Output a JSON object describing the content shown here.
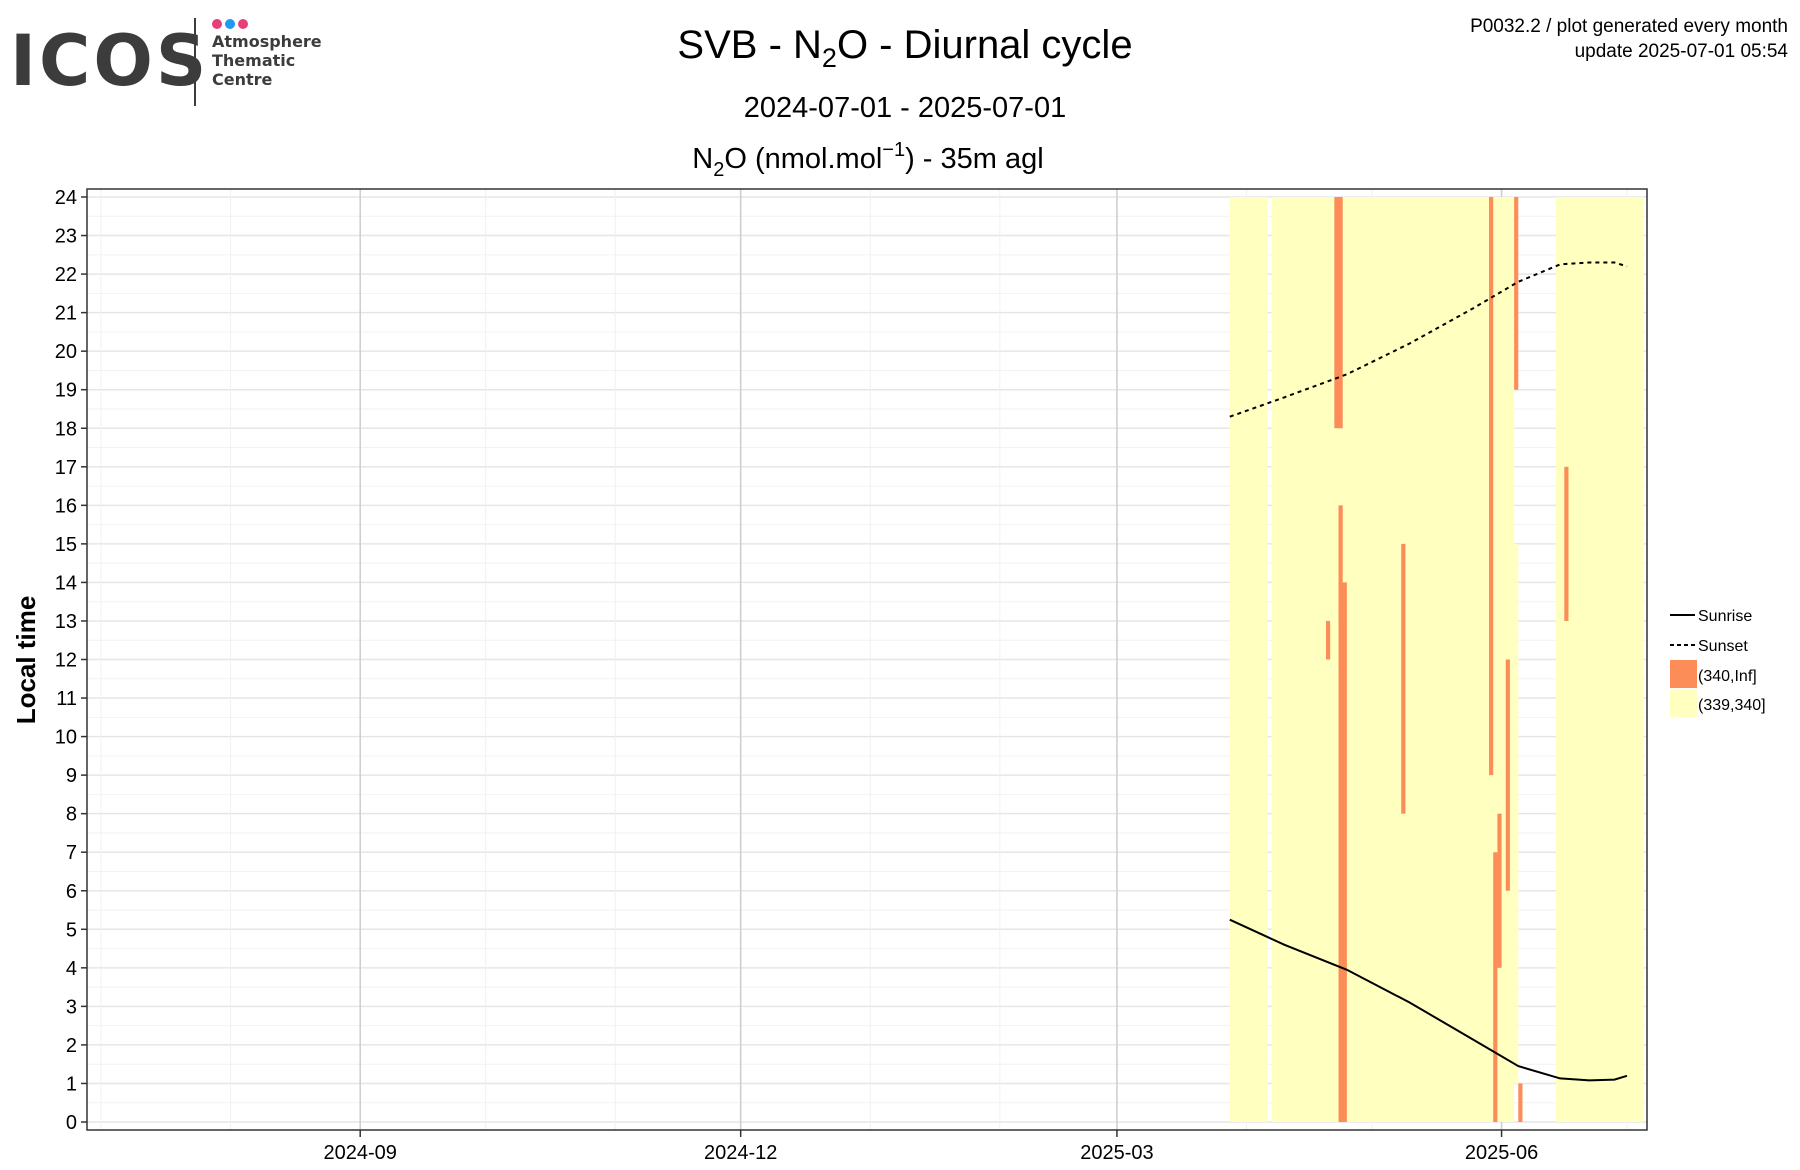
{
  "logo": {
    "word": "ICOS",
    "lines": [
      "Atmosphere",
      "Thematic",
      "Centre"
    ],
    "dot_colors": [
      "#e83e7a",
      "#1d9bf0",
      "#e83e7a"
    ]
  },
  "meta": {
    "line1": "P0032.2 / plot generated every month",
    "line2": "update  2025-07-01 05:54"
  },
  "title": {
    "prefix": "SVB - N",
    "sub": "2",
    "suffix": "O - Diurnal cycle"
  },
  "subtitle": "2024-07-01 - 2025-07-01",
  "subtitle2": {
    "prefix": "N",
    "sub": "2",
    "mid": "O (nmol.mol",
    "sup": "−1",
    "suffix": ") - 35m agl"
  },
  "chart_data": {
    "type": "heatmap",
    "ylabel": "Local time",
    "xlim": [
      "2024-07-01",
      "2025-07-01"
    ],
    "ylim": [
      0,
      24
    ],
    "y_ticks": [
      0,
      1,
      2,
      3,
      4,
      5,
      6,
      7,
      8,
      9,
      10,
      11,
      12,
      13,
      14,
      15,
      16,
      17,
      18,
      19,
      20,
      21,
      22,
      23,
      24
    ],
    "x_ticks": [
      "2024-09",
      "2024-12",
      "2025-03",
      "2025-06"
    ],
    "grid": true,
    "legend_position": "right",
    "legend": [
      {
        "label": "Sunrise",
        "kind": "line",
        "style": "solid"
      },
      {
        "label": "Sunset",
        "kind": "line",
        "style": "dashed"
      },
      {
        "label": "(340,Inf]",
        "kind": "fill",
        "color": "#fc8d59"
      },
      {
        "label": "(339,340]",
        "kind": "fill",
        "color": "#ffffbf"
      }
    ],
    "tiles": [
      {
        "class": "(339,340]",
        "x0": "2025-03-28",
        "x1": "2025-04-06",
        "y0": 0,
        "y1": 24
      },
      {
        "class": "(339,340]",
        "x0": "2025-04-07",
        "x1": "2025-05-22",
        "y0": 0,
        "y1": 24
      },
      {
        "class": "(339,340]",
        "x0": "2025-05-22",
        "x1": "2025-06-04",
        "y0": 0,
        "y1": 24
      },
      {
        "class": "(339,340]",
        "x0": "2025-06-04",
        "x1": "2025-06-05",
        "y0": 1,
        "y1": 15
      },
      {
        "class": "(339,340]",
        "x0": "2025-06-14",
        "x1": "2025-07-05",
        "y0": 0,
        "y1": 24
      },
      {
        "class": "(340,Inf]",
        "x0": "2025-04-22",
        "x1": "2025-04-24",
        "y0": 18,
        "y1": 24
      },
      {
        "class": "(340,Inf]",
        "x0": "2025-04-23",
        "x1": "2025-04-24",
        "y0": 13,
        "y1": 16
      },
      {
        "class": "(340,Inf]",
        "x0": "2025-04-23",
        "x1": "2025-04-25",
        "y0": 0,
        "y1": 14
      },
      {
        "class": "(340,Inf]",
        "x0": "2025-04-20",
        "x1": "2025-04-21",
        "y0": 12,
        "y1": 13
      },
      {
        "class": "(340,Inf]",
        "x0": "2025-05-08",
        "x1": "2025-05-09",
        "y0": 8,
        "y1": 15
      },
      {
        "class": "(340,Inf]",
        "x0": "2025-05-29",
        "x1": "2025-05-30",
        "y0": 9,
        "y1": 24
      },
      {
        "class": "(340,Inf]",
        "x0": "2025-05-30",
        "x1": "2025-05-31",
        "y0": 0,
        "y1": 7
      },
      {
        "class": "(340,Inf]",
        "x0": "2025-05-31",
        "x1": "2025-06-01",
        "y0": 4,
        "y1": 8
      },
      {
        "class": "(340,Inf]",
        "x0": "2025-06-02",
        "x1": "2025-06-03",
        "y0": 6,
        "y1": 12
      },
      {
        "class": "(340,Inf]",
        "x0": "2025-06-04",
        "x1": "2025-06-05",
        "y0": 19,
        "y1": 24
      },
      {
        "class": "(340,Inf]",
        "x0": "2025-06-05",
        "x1": "2025-06-06",
        "y0": 0,
        "y1": 1
      },
      {
        "class": "(340,Inf]",
        "x0": "2025-06-16",
        "x1": "2025-06-17",
        "y0": 13,
        "y1": 17
      }
    ],
    "sunrise": [
      {
        "x": "2025-03-28",
        "y": 5.25
      },
      {
        "x": "2025-04-10",
        "y": 4.6
      },
      {
        "x": "2025-04-25",
        "y": 3.95
      },
      {
        "x": "2025-05-10",
        "y": 3.1
      },
      {
        "x": "2025-05-25",
        "y": 2.15
      },
      {
        "x": "2025-06-05",
        "y": 1.45
      },
      {
        "x": "2025-06-15",
        "y": 1.13
      },
      {
        "x": "2025-06-22",
        "y": 1.08
      },
      {
        "x": "2025-06-28",
        "y": 1.1
      },
      {
        "x": "2025-07-01",
        "y": 1.2
      }
    ],
    "sunset": [
      {
        "x": "2025-03-28",
        "y": 18.3
      },
      {
        "x": "2025-04-10",
        "y": 18.8
      },
      {
        "x": "2025-04-25",
        "y": 19.4
      },
      {
        "x": "2025-05-10",
        "y": 20.2
      },
      {
        "x": "2025-05-25",
        "y": 21.1
      },
      {
        "x": "2025-06-05",
        "y": 21.8
      },
      {
        "x": "2025-06-15",
        "y": 22.25
      },
      {
        "x": "2025-06-22",
        "y": 22.3
      },
      {
        "x": "2025-06-28",
        "y": 22.3
      },
      {
        "x": "2025-07-01",
        "y": 22.2
      }
    ]
  }
}
